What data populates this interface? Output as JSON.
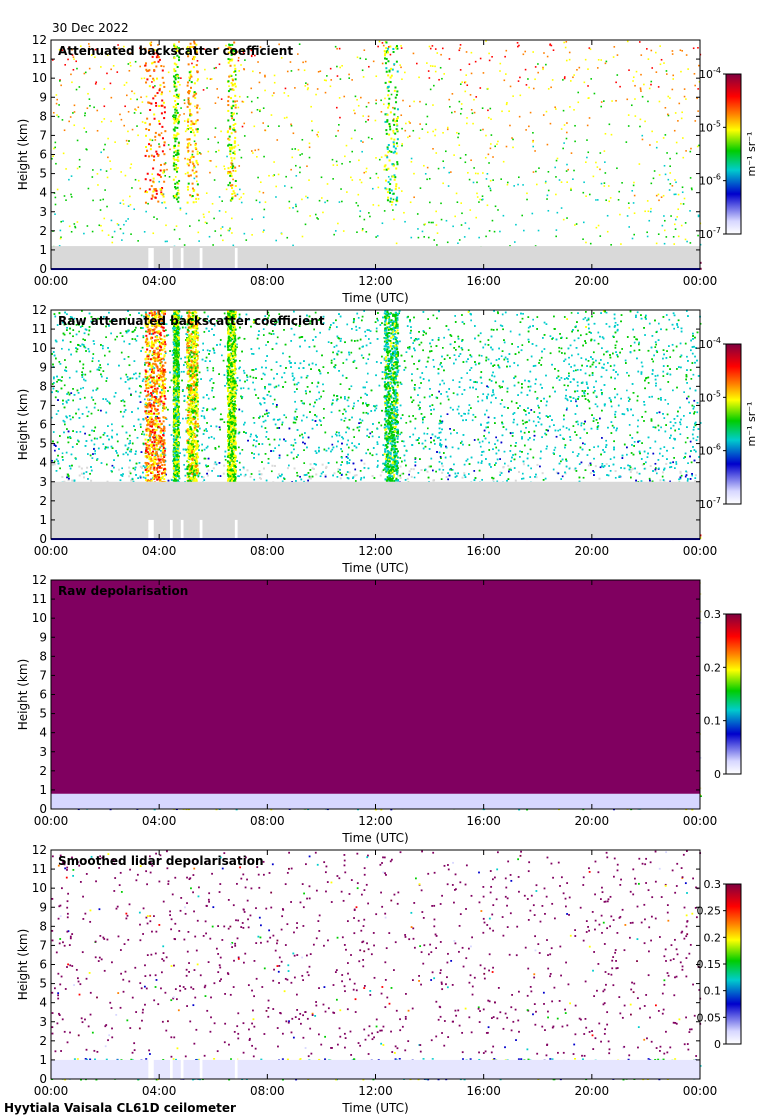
{
  "date": "30 Dec 2022",
  "footer": "Hyytiala Vaisala CL61D ceilometer",
  "panels": [
    {
      "id": "attenuated",
      "title": "Attenuated backscatter coefficient",
      "xlabel": "Time (UTC)",
      "ylabel": "Height (km)",
      "colorbar_units": "m⁻¹ sr⁻¹"
    },
    {
      "id": "raw-attenuated",
      "title": "Raw attenuated backscatter coefficient",
      "xlabel": "Time (UTC)",
      "ylabel": "Height (km)",
      "colorbar_units": "m⁻¹ sr⁻¹"
    },
    {
      "id": "raw-depol",
      "title": "Raw depolarisation",
      "xlabel": "Time (UTC)",
      "ylabel": "Height (km)",
      "colorbar_units": ""
    },
    {
      "id": "smoothed-depol",
      "title": "Smoothed lidar depolarisation",
      "xlabel": "Time (UTC)",
      "ylabel": "Height (km)",
      "colorbar_units": ""
    }
  ],
  "chart_data": [
    {
      "type": "heatmap",
      "title": "Attenuated backscatter coefficient",
      "xlabel": "Time (UTC)",
      "ylabel": "Height (km)",
      "x_ticks": [
        "00:00",
        "04:00",
        "08:00",
        "12:00",
        "16:00",
        "20:00",
        "00:00"
      ],
      "y_ticks": [
        "0",
        "1",
        "2",
        "3",
        "4",
        "5",
        "6",
        "7",
        "8",
        "9",
        "10",
        "11",
        "12"
      ],
      "xlim": [
        "00:00",
        "24:00"
      ],
      "ylim": [
        0,
        12
      ],
      "scale": "log",
      "colorbar": {
        "ticks": [
          "10-7",
          "10-6",
          "10-5",
          "10-4"
        ],
        "range": [
          1e-07,
          0.0001
        ],
        "units": "m-1 sr-1"
      },
      "colormap": [
        "#ffffff",
        "#d7d7ff",
        "#0000cc",
        "#00cccc",
        "#00cc00",
        "#ffff00",
        "#ff8000",
        "#ff0000",
        "#800040"
      ]
    },
    {
      "type": "heatmap",
      "title": "Raw attenuated backscatter coefficient",
      "xlabel": "Time (UTC)",
      "ylabel": "Height (km)",
      "x_ticks": [
        "00:00",
        "04:00",
        "08:00",
        "12:00",
        "16:00",
        "20:00",
        "00:00"
      ],
      "y_ticks": [
        "0",
        "1",
        "2",
        "3",
        "4",
        "5",
        "6",
        "7",
        "8",
        "9",
        "10",
        "11",
        "12"
      ],
      "xlim": [
        "00:00",
        "24:00"
      ],
      "ylim": [
        0,
        12
      ],
      "scale": "log",
      "colorbar": {
        "ticks": [
          "10-7",
          "10-6",
          "10-5",
          "10-4"
        ],
        "range": [
          1e-07,
          0.0001
        ],
        "units": "m-1 sr-1"
      },
      "colormap": [
        "#ffffff",
        "#d7d7ff",
        "#0000cc",
        "#00cccc",
        "#00cc00",
        "#ffff00",
        "#ff8000",
        "#ff0000",
        "#800040"
      ]
    },
    {
      "type": "heatmap",
      "title": "Raw depolarisation",
      "xlabel": "Time (UTC)",
      "ylabel": "Height (km)",
      "x_ticks": [
        "00:00",
        "04:00",
        "08:00",
        "12:00",
        "16:00",
        "20:00",
        "00:00"
      ],
      "y_ticks": [
        "0",
        "1",
        "2",
        "3",
        "4",
        "5",
        "6",
        "7",
        "8",
        "9",
        "10",
        "11",
        "12"
      ],
      "xlim": [
        "00:00",
        "24:00"
      ],
      "ylim": [
        0,
        12
      ],
      "colorbar": {
        "ticks": [
          "0",
          "0.1",
          "0.2",
          "0.3"
        ],
        "range": [
          0,
          0.3
        ]
      },
      "colormap": [
        "#ffffff",
        "#d7d7ff",
        "#0000cc",
        "#00cccc",
        "#00cc00",
        "#ffff00",
        "#ff8000",
        "#ff0000",
        "#800040"
      ]
    },
    {
      "type": "heatmap",
      "title": "Smoothed lidar depolarisation",
      "xlabel": "Time (UTC)",
      "ylabel": "Height (km)",
      "x_ticks": [
        "00:00",
        "04:00",
        "08:00",
        "12:00",
        "16:00",
        "20:00",
        "00:00"
      ],
      "y_ticks": [
        "0",
        "1",
        "2",
        "3",
        "4",
        "5",
        "6",
        "7",
        "8",
        "9",
        "10",
        "11",
        "12"
      ],
      "xlim": [
        "00:00",
        "24:00"
      ],
      "ylim": [
        0,
        12
      ],
      "colorbar": {
        "ticks": [
          "0",
          "0.05",
          "0.1",
          "0.15",
          "0.2",
          "0.25",
          "0.3"
        ],
        "range": [
          0,
          0.3
        ]
      },
      "colormap": [
        "#ffffff",
        "#d7d7ff",
        "#0000cc",
        "#00cccc",
        "#00cc00",
        "#ffff00",
        "#ff8000",
        "#ff0000",
        "#800040"
      ]
    }
  ]
}
